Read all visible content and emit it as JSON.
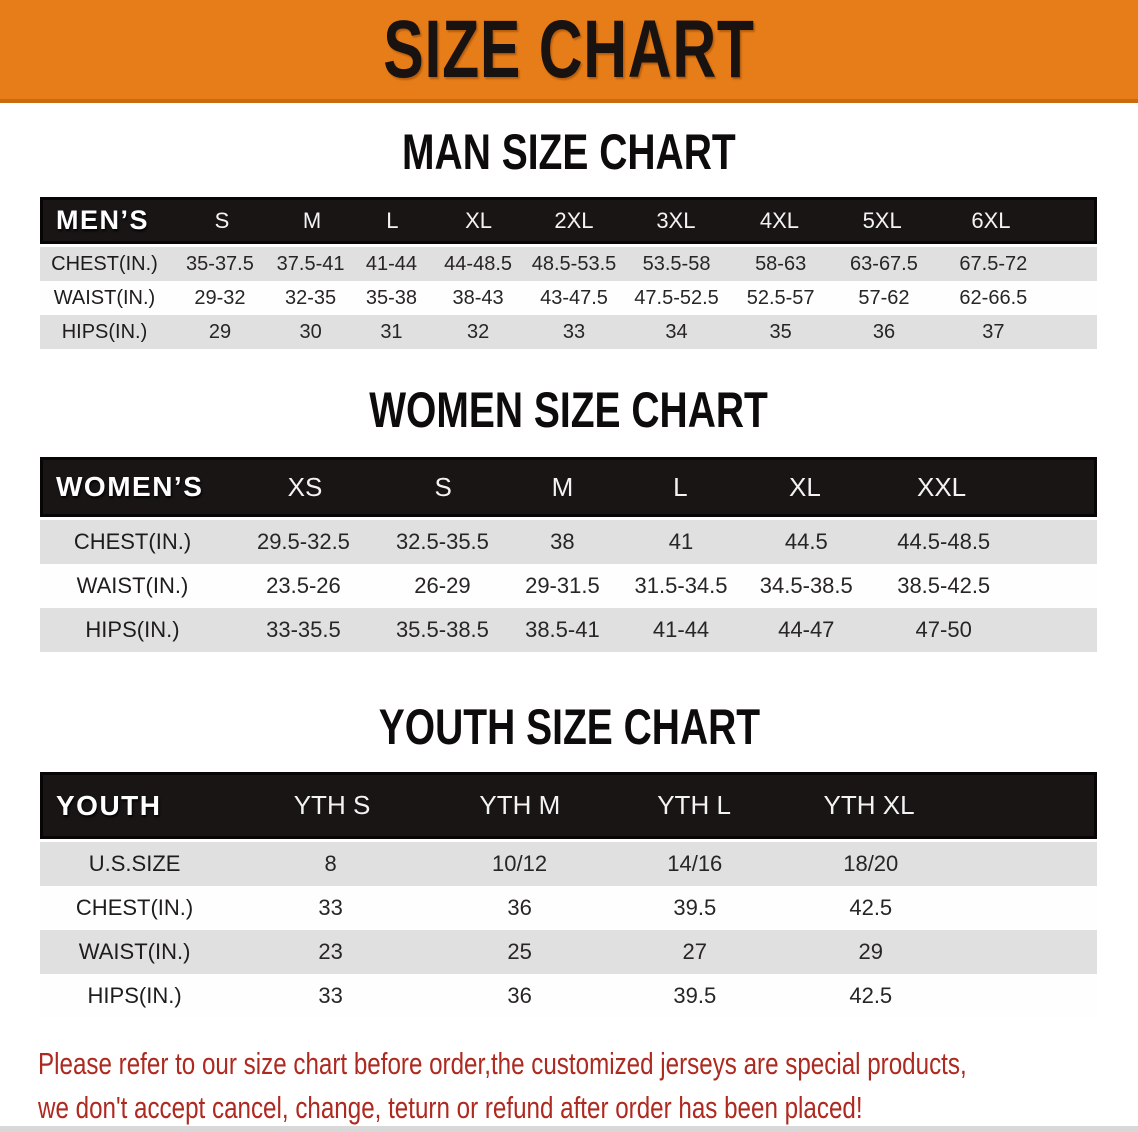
{
  "banner": {
    "title": "SIZE CHART"
  },
  "sections": [
    {
      "heading": "MAN SIZE CHART",
      "label": "MEN’S",
      "columns": [
        "S",
        "M",
        "L",
        "XL",
        "2XL",
        "3XL",
        "4XL",
        "5XL",
        "6XL"
      ],
      "rows": [
        {
          "label": "CHEST(IN.)",
          "values": [
            "35-37.5",
            "37.5-41",
            "41-44",
            "44-48.5",
            "48.5-53.5",
            "53.5-58",
            "58-63",
            "63-67.5",
            "67.5-72"
          ]
        },
        {
          "label": "WAIST(IN.)",
          "values": [
            "29-32",
            "32-35",
            "35-38",
            "38-43",
            "43-47.5",
            "47.5-52.5",
            "52.5-57",
            "57-62",
            "62-66.5"
          ]
        },
        {
          "label": "HIPS(IN.)",
          "values": [
            "29",
            "30",
            "31",
            "32",
            "33",
            "34",
            "35",
            "36",
            "37"
          ]
        }
      ]
    },
    {
      "heading": "WOMEN SIZE CHART",
      "label": "WOMEN’S",
      "columns": [
        "XS",
        "S",
        "M",
        "L",
        "XL",
        "XXL"
      ],
      "rows": [
        {
          "label": "CHEST(IN.)",
          "values": [
            "29.5-32.5",
            "32.5-35.5",
            "38",
            "41",
            "44.5",
            "44.5-48.5"
          ]
        },
        {
          "label": "WAIST(IN.)",
          "values": [
            "23.5-26",
            "26-29",
            "29-31.5",
            "31.5-34.5",
            "34.5-38.5",
            "38.5-42.5"
          ]
        },
        {
          "label": "HIPS(IN.)",
          "values": [
            "33-35.5",
            "35.5-38.5",
            "38.5-41",
            "41-44",
            "44-47",
            "47-50"
          ]
        }
      ]
    },
    {
      "heading": "YOUTH SIZE CHART",
      "label": "YOUTH",
      "columns": [
        "YTH S",
        "YTH M",
        "YTH L",
        "YTH XL"
      ],
      "rows": [
        {
          "label": "U.S.SIZE",
          "values": [
            "8",
            "10/12",
            "14/16",
            "18/20"
          ]
        },
        {
          "label": "CHEST(IN.)",
          "values": [
            "33",
            "36",
            "39.5",
            "42.5"
          ]
        },
        {
          "label": "WAIST(IN.)",
          "values": [
            "23",
            "25",
            "27",
            "29"
          ]
        },
        {
          "label": "HIPS(IN.)",
          "values": [
            "33",
            "36",
            "39.5",
            "42.5"
          ]
        }
      ]
    }
  ],
  "disclaimer": {
    "lines": [
      "Please refer to our size chart before order,the customized jerseys are special products,",
      "we don't accept cancel, change, teturn or refund after order has been placed!"
    ]
  },
  "colors": {
    "banner_orange": "#E67D18",
    "banner_edge": "#C86A0F",
    "header_black": "#191515",
    "stripe_gray": "#E0E0E0",
    "disclaimer_red": "#AE2A20"
  }
}
